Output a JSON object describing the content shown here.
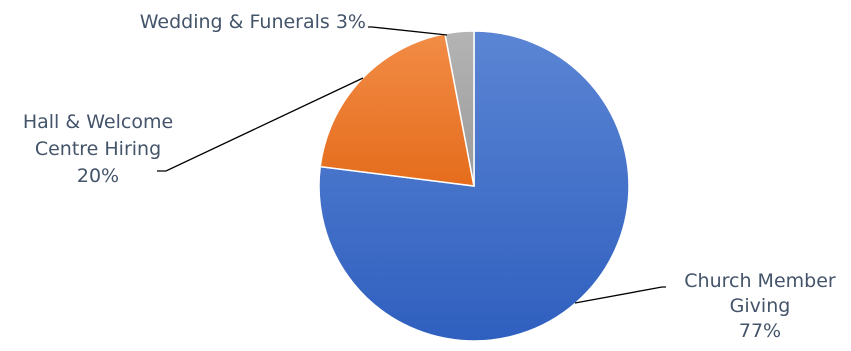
{
  "chart_data": {
    "type": "pie",
    "title": "",
    "start_angle_deg": 0,
    "direction": "clockwise",
    "slices": [
      {
        "label_lines": [
          "Church Member",
          "Giving"
        ],
        "value_text": "77%",
        "value": 77,
        "color": "#4472c4"
      },
      {
        "label_lines": [
          "Hall & Welcome",
          "Centre Hiring"
        ],
        "value_text": "20%",
        "value": 20,
        "color": "#ed7d31"
      },
      {
        "label_lines": [
          "Wedding & Funerals 3%"
        ],
        "value_text": "",
        "value": 3,
        "color": "#a5a5a5"
      }
    ],
    "legend": "none",
    "data_labels": "outside-with-leader-lines"
  }
}
